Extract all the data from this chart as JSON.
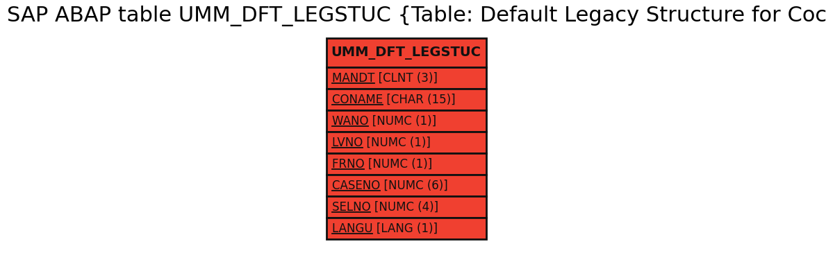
{
  "title": "SAP ABAP table UMM_DFT_LEGSTUC {Table: Default Legacy Structure for Cockpit}",
  "title_fontsize": 22,
  "title_color": "#000000",
  "bg_color": "#ffffff",
  "table_name": "UMM_DFT_LEGSTUC",
  "header_bg": "#f04030",
  "row_bg": "#f04030",
  "border_color": "#111111",
  "text_color": "#111111",
  "fields": [
    {
      "name": "MANDT",
      "type": " [CLNT (3)]"
    },
    {
      "name": "CONAME",
      "type": " [CHAR (15)]"
    },
    {
      "name": "WANO",
      "type": " [NUMC (1)]"
    },
    {
      "name": "LVNO",
      "type": " [NUMC (1)]"
    },
    {
      "name": "FRNO",
      "type": " [NUMC (1)]"
    },
    {
      "name": "CASENO",
      "type": " [NUMC (6)]"
    },
    {
      "name": "SELNO",
      "type": " [NUMC (4)]"
    },
    {
      "name": "LANGU",
      "type": " [LANG (1)]"
    }
  ],
  "fig_w": 11.89,
  "fig_h": 3.65,
  "dpi": 100,
  "header_fontsize": 14,
  "field_fontsize": 12,
  "border_lw": 2.0
}
